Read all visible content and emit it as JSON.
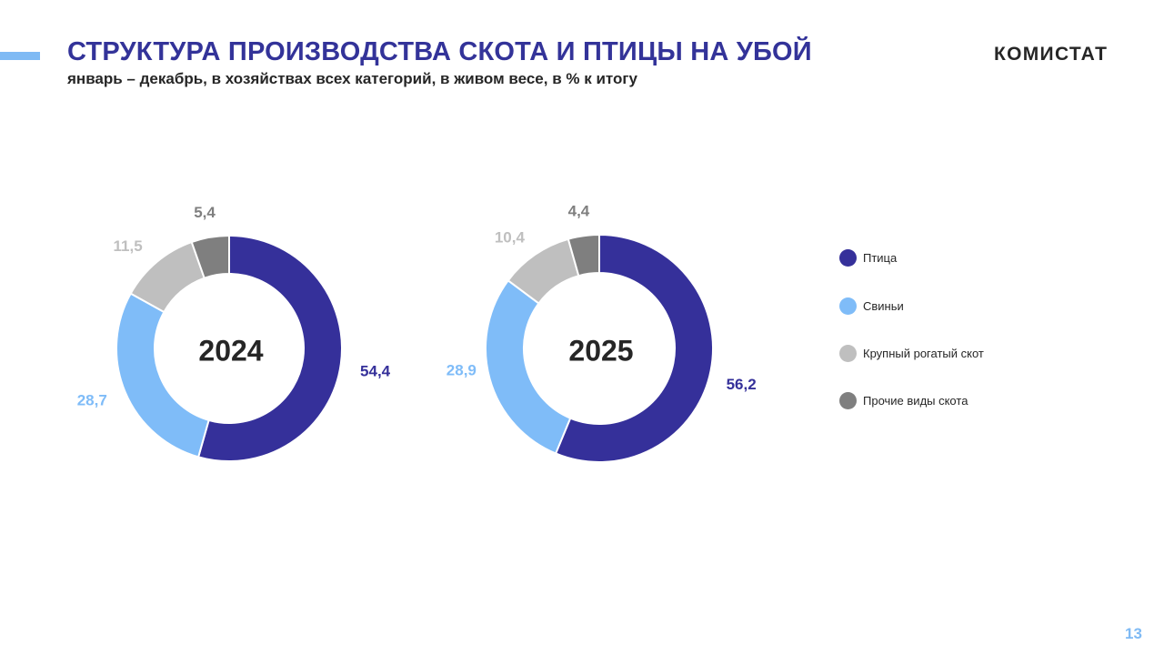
{
  "header": {
    "title": "СТРУКТУРА ПРОИЗВОДСТВА СКОТА И ПТИЦЫ НА УБОЙ",
    "subtitle": "январь – декабрь, в хозяйствах всех категорий, в живом весе, в % к итогу",
    "logo": "КОМИСТАТ"
  },
  "page_number": "13",
  "colors": {
    "title": "#333399",
    "accent": "#7FBAF4",
    "page_number": "#7FBAF4"
  },
  "legend": {
    "items": [
      {
        "label": "Птица",
        "color": "#35309A"
      },
      {
        "label": "Свиньи",
        "color": "#7FBCF8"
      },
      {
        "label": "Крупный  рогатый  скот",
        "color": "#BFBFBF"
      },
      {
        "label": "Прочие  виды  скота",
        "color": "#7F7F7F"
      }
    ]
  },
  "chart_data": [
    {
      "type": "pie",
      "variant": "donut",
      "center_label": "2024",
      "categories": [
        "Птица",
        "Свиньи",
        "Крупный  рогатый  скот",
        "Прочие  виды  скота"
      ],
      "values": [
        54.4,
        28.7,
        11.5,
        5.4
      ],
      "value_labels": [
        "54,4",
        "28,7",
        "11,5",
        "5,4"
      ],
      "colors": [
        "#35309A",
        "#7FBCF8",
        "#BFBFBF",
        "#7F7F7F"
      ],
      "label_colors": [
        "#35309A",
        "#7FBCF8",
        "#BFBFBF",
        "#7F7F7F"
      ],
      "start": "12 o'clock, clockwise"
    },
    {
      "type": "pie",
      "variant": "donut",
      "center_label": "2025",
      "categories": [
        "Птица",
        "Свиньи",
        "Крупный  рогатый  скот",
        "Прочие  виды  скота"
      ],
      "values": [
        56.2,
        28.9,
        10.4,
        4.4
      ],
      "value_labels": [
        "56,2",
        "28,9",
        "10,4",
        "4,4"
      ],
      "colors": [
        "#35309A",
        "#7FBCF8",
        "#BFBFBF",
        "#7F7F7F"
      ],
      "label_colors": [
        "#35309A",
        "#7FBCF8",
        "#BFBFBF",
        "#7F7F7F"
      ],
      "start": "12 o'clock, clockwise"
    }
  ]
}
